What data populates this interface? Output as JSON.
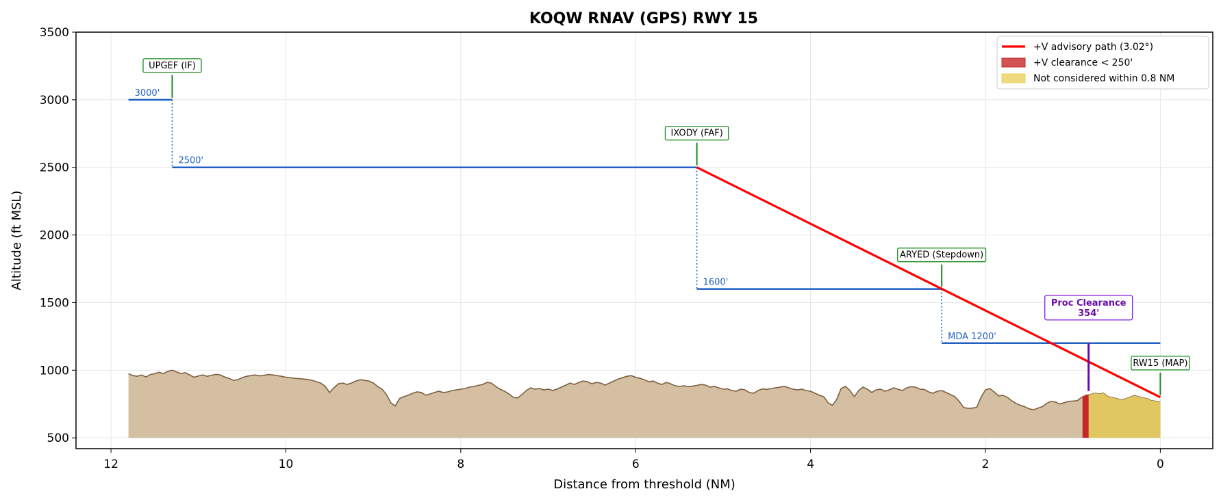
{
  "chart_data": {
    "type": "line",
    "title": "KOQW  RNAV (GPS) RWY 15",
    "xlabel": "Distance from threshold (NM)",
    "ylabel": "Altitude (ft MSL)",
    "xlim": [
      12.4,
      -0.6
    ],
    "ylim": [
      420,
      3500
    ],
    "x_inverted": true,
    "x_ticks": [
      12,
      10,
      8,
      6,
      4,
      2,
      0
    ],
    "y_ticks": [
      500,
      1000,
      1500,
      2000,
      2500,
      3000,
      3500
    ],
    "grid": true,
    "legend_position": "top-right",
    "legend": [
      {
        "label": "+V advisory path (3.02°)",
        "color": "#ff0000",
        "kind": "line"
      },
      {
        "label": "+V clearance < 250'",
        "color": "#c62828",
        "kind": "patch"
      },
      {
        "label": "Not considered within 0.8 NM",
        "color": "#ebd25f",
        "kind": "patch"
      }
    ],
    "colors": {
      "terrain_fill": "#d4bfa2",
      "terrain_edge": "#7c6040",
      "segments": "#1f5fc4",
      "fix_box": "#1a8a1a",
      "advisory": "#ff0000",
      "clearance_red": "#c62828",
      "not_considered": "#e0c760",
      "proc_clearance": "#6a0dad"
    },
    "segments": [
      {
        "from": 11.8,
        "to": 11.3,
        "alt": 3000,
        "label": "3000'"
      },
      {
        "from": 11.3,
        "to": 5.3,
        "alt": 2500,
        "label": "2500'"
      },
      {
        "from": 5.3,
        "to": 2.5,
        "alt": 1600,
        "label": "1600'"
      },
      {
        "from": 2.5,
        "to": 0,
        "alt": 1200,
        "label": "MDA 1200'"
      }
    ],
    "step_drops": [
      {
        "x": 11.3,
        "from": 3000,
        "to": 2500
      },
      {
        "x": 5.3,
        "from": 2500,
        "to": 1600
      },
      {
        "x": 2.5,
        "from": 1600,
        "to": 1200
      }
    ],
    "advisory_path": [
      [
        5.3,
        2500
      ],
      [
        0,
        800
      ]
    ],
    "fixes": [
      {
        "name": "UPGEF (IF)",
        "x": 11.3,
        "alt": 3000
      },
      {
        "name": "IXODY (FAF)",
        "x": 5.3,
        "alt": 2500
      },
      {
        "name": "ARYED (Stepdown)",
        "x": 2.5,
        "alt": 1600
      },
      {
        "name": "RW15 (MAP)",
        "x": 0,
        "alt": 800
      }
    ],
    "proc_clearance": {
      "label": "Proc Clearance",
      "value": "354'",
      "x": 0.82,
      "from": 846,
      "to": 1200
    },
    "red_zone": [
      0.89,
      0.82
    ],
    "yellow_zone": [
      0.82,
      0
    ],
    "terrain_base": 500,
    "terrain": [
      [
        11.8,
        975
      ],
      [
        11.75,
        960
      ],
      [
        11.7,
        955
      ],
      [
        11.65,
        965
      ],
      [
        11.6,
        950
      ],
      [
        11.55,
        968
      ],
      [
        11.5,
        975
      ],
      [
        11.45,
        985
      ],
      [
        11.4,
        975
      ],
      [
        11.35,
        992
      ],
      [
        11.3,
        1000
      ],
      [
        11.25,
        988
      ],
      [
        11.2,
        975
      ],
      [
        11.15,
        982
      ],
      [
        11.1,
        965
      ],
      [
        11.05,
        948
      ],
      [
        11.0,
        958
      ],
      [
        10.95,
        965
      ],
      [
        10.9,
        955
      ],
      [
        10.85,
        962
      ],
      [
        10.8,
        970
      ],
      [
        10.75,
        965
      ],
      [
        10.7,
        950
      ],
      [
        10.65,
        940
      ],
      [
        10.6,
        925
      ],
      [
        10.55,
        930
      ],
      [
        10.5,
        945
      ],
      [
        10.45,
        955
      ],
      [
        10.4,
        960
      ],
      [
        10.35,
        965
      ],
      [
        10.3,
        958
      ],
      [
        10.25,
        962
      ],
      [
        10.2,
        968
      ],
      [
        10.15,
        965
      ],
      [
        10.1,
        960
      ],
      [
        10.05,
        955
      ],
      [
        10.0,
        948
      ],
      [
        9.95,
        945
      ],
      [
        9.9,
        940
      ],
      [
        9.85,
        938
      ],
      [
        9.8,
        935
      ],
      [
        9.75,
        932
      ],
      [
        9.7,
        925
      ],
      [
        9.65,
        915
      ],
      [
        9.6,
        905
      ],
      [
        9.55,
        880
      ],
      [
        9.5,
        835
      ],
      [
        9.45,
        870
      ],
      [
        9.4,
        900
      ],
      [
        9.35,
        905
      ],
      [
        9.3,
        895
      ],
      [
        9.25,
        905
      ],
      [
        9.2,
        920
      ],
      [
        9.15,
        930
      ],
      [
        9.1,
        925
      ],
      [
        9.05,
        920
      ],
      [
        9.0,
        905
      ],
      [
        8.95,
        880
      ],
      [
        8.9,
        860
      ],
      [
        8.85,
        820
      ],
      [
        8.8,
        760
      ],
      [
        8.75,
        735
      ],
      [
        8.7,
        790
      ],
      [
        8.65,
        805
      ],
      [
        8.6,
        815
      ],
      [
        8.55,
        830
      ],
      [
        8.5,
        840
      ],
      [
        8.45,
        835
      ],
      [
        8.4,
        815
      ],
      [
        8.35,
        825
      ],
      [
        8.3,
        835
      ],
      [
        8.25,
        845
      ],
      [
        8.2,
        835
      ],
      [
        8.15,
        840
      ],
      [
        8.1,
        850
      ],
      [
        8.05,
        855
      ],
      [
        8.0,
        860
      ],
      [
        7.95,
        865
      ],
      [
        7.9,
        875
      ],
      [
        7.85,
        880
      ],
      [
        7.8,
        888
      ],
      [
        7.75,
        895
      ],
      [
        7.7,
        910
      ],
      [
        7.65,
        905
      ],
      [
        7.6,
        880
      ],
      [
        7.55,
        860
      ],
      [
        7.5,
        845
      ],
      [
        7.45,
        825
      ],
      [
        7.4,
        800
      ],
      [
        7.35,
        795
      ],
      [
        7.3,
        820
      ],
      [
        7.25,
        850
      ],
      [
        7.2,
        870
      ],
      [
        7.15,
        860
      ],
      [
        7.1,
        865
      ],
      [
        7.05,
        855
      ],
      [
        7.0,
        860
      ],
      [
        6.95,
        850
      ],
      [
        6.9,
        860
      ],
      [
        6.85,
        875
      ],
      [
        6.8,
        890
      ],
      [
        6.75,
        905
      ],
      [
        6.7,
        895
      ],
      [
        6.65,
        910
      ],
      [
        6.6,
        920
      ],
      [
        6.55,
        915
      ],
      [
        6.5,
        900
      ],
      [
        6.45,
        910
      ],
      [
        6.4,
        905
      ],
      [
        6.35,
        890
      ],
      [
        6.3,
        905
      ],
      [
        6.25,
        920
      ],
      [
        6.2,
        935
      ],
      [
        6.15,
        945
      ],
      [
        6.1,
        955
      ],
      [
        6.05,
        960
      ],
      [
        6.0,
        948
      ],
      [
        5.95,
        940
      ],
      [
        5.9,
        930
      ],
      [
        5.85,
        915
      ],
      [
        5.8,
        920
      ],
      [
        5.75,
        905
      ],
      [
        5.7,
        895
      ],
      [
        5.65,
        910
      ],
      [
        5.6,
        900
      ],
      [
        5.55,
        885
      ],
      [
        5.5,
        880
      ],
      [
        5.45,
        885
      ],
      [
        5.4,
        878
      ],
      [
        5.35,
        882
      ],
      [
        5.3,
        888
      ],
      [
        5.25,
        895
      ],
      [
        5.2,
        890
      ],
      [
        5.15,
        875
      ],
      [
        5.1,
        880
      ],
      [
        5.05,
        870
      ],
      [
        5.0,
        860
      ],
      [
        4.95,
        862
      ],
      [
        4.9,
        850
      ],
      [
        4.85,
        845
      ],
      [
        4.8,
        860
      ],
      [
        4.75,
        855
      ],
      [
        4.7,
        835
      ],
      [
        4.65,
        830
      ],
      [
        4.6,
        850
      ],
      [
        4.55,
        862
      ],
      [
        4.5,
        858
      ],
      [
        4.45,
        865
      ],
      [
        4.4,
        870
      ],
      [
        4.35,
        875
      ],
      [
        4.3,
        880
      ],
      [
        4.25,
        870
      ],
      [
        4.2,
        860
      ],
      [
        4.15,
        855
      ],
      [
        4.1,
        860
      ],
      [
        4.05,
        850
      ],
      [
        4.0,
        845
      ],
      [
        3.95,
        830
      ],
      [
        3.9,
        815
      ],
      [
        3.85,
        805
      ],
      [
        3.8,
        760
      ],
      [
        3.75,
        740
      ],
      [
        3.7,
        785
      ],
      [
        3.65,
        865
      ],
      [
        3.6,
        880
      ],
      [
        3.55,
        850
      ],
      [
        3.5,
        805
      ],
      [
        3.45,
        850
      ],
      [
        3.4,
        875
      ],
      [
        3.35,
        860
      ],
      [
        3.3,
        835
      ],
      [
        3.25,
        855
      ],
      [
        3.2,
        860
      ],
      [
        3.15,
        845
      ],
      [
        3.1,
        855
      ],
      [
        3.05,
        870
      ],
      [
        3.0,
        860
      ],
      [
        2.95,
        850
      ],
      [
        2.9,
        870
      ],
      [
        2.85,
        878
      ],
      [
        2.8,
        875
      ],
      [
        2.75,
        860
      ],
      [
        2.7,
        858
      ],
      [
        2.65,
        840
      ],
      [
        2.6,
        830
      ],
      [
        2.55,
        845
      ],
      [
        2.5,
        850
      ],
      [
        2.45,
        835
      ],
      [
        2.4,
        820
      ],
      [
        2.35,
        805
      ],
      [
        2.3,
        770
      ],
      [
        2.25,
        725
      ],
      [
        2.2,
        718
      ],
      [
        2.15,
        720
      ],
      [
        2.1,
        725
      ],
      [
        2.05,
        800
      ],
      [
        2.0,
        855
      ],
      [
        1.95,
        865
      ],
      [
        1.9,
        840
      ],
      [
        1.85,
        810
      ],
      [
        1.8,
        815
      ],
      [
        1.75,
        800
      ],
      [
        1.7,
        775
      ],
      [
        1.65,
        755
      ],
      [
        1.6,
        740
      ],
      [
        1.55,
        730
      ],
      [
        1.5,
        715
      ],
      [
        1.45,
        708
      ],
      [
        1.4,
        720
      ],
      [
        1.35,
        730
      ],
      [
        1.3,
        755
      ],
      [
        1.25,
        770
      ],
      [
        1.2,
        765
      ],
      [
        1.15,
        750
      ],
      [
        1.1,
        760
      ],
      [
        1.05,
        770
      ],
      [
        1.0,
        772
      ],
      [
        0.95,
        775
      ],
      [
        0.9,
        800
      ],
      [
        0.85,
        815
      ],
      [
        0.8,
        820
      ],
      [
        0.75,
        830
      ],
      [
        0.7,
        825
      ],
      [
        0.65,
        830
      ],
      [
        0.6,
        805
      ],
      [
        0.55,
        798
      ],
      [
        0.5,
        790
      ],
      [
        0.45,
        780
      ],
      [
        0.4,
        788
      ],
      [
        0.35,
        800
      ],
      [
        0.3,
        812
      ],
      [
        0.25,
        805
      ],
      [
        0.2,
        795
      ],
      [
        0.15,
        790
      ],
      [
        0.1,
        775
      ],
      [
        0.05,
        770
      ],
      [
        0.0,
        765
      ]
    ]
  }
}
